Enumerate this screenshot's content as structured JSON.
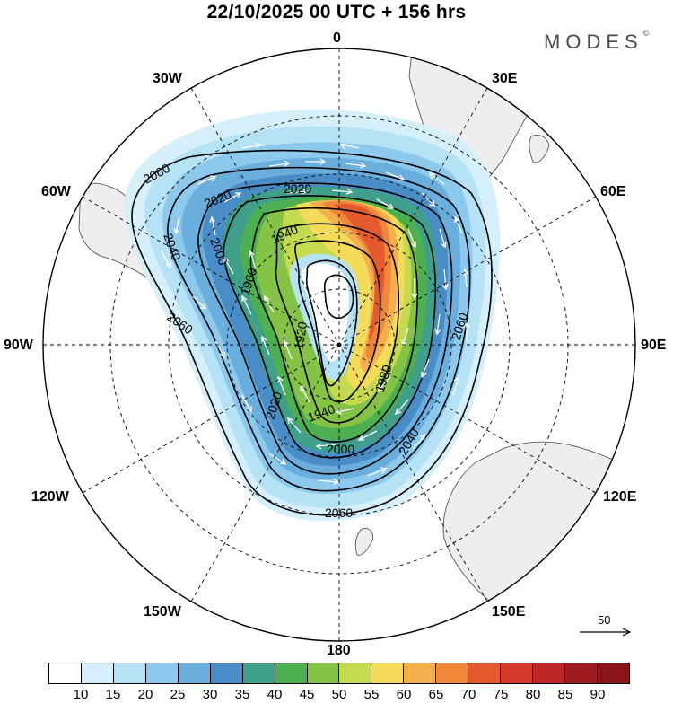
{
  "header": {
    "title": "22/10/2025  00 UTC  + 156 hrs",
    "brand": "MODES",
    "brand_mark": "©"
  },
  "map": {
    "projection": "polar-stereographic-south",
    "longitude_labels": {
      "top": "0",
      "top_right": "30E",
      "right_upper": "60E",
      "right": "90E",
      "right_lower": "120E",
      "bottom_right": "150E",
      "bottom": "180",
      "bottom_left": "150W",
      "left_lower": "120W",
      "left": "90W",
      "left_upper": "60W",
      "top_left": "30W"
    },
    "contour_labels": [
      "2060",
      "2020",
      "2020",
      "2040",
      "2000",
      "1940",
      "1960",
      "1920",
      "1980",
      "2060",
      "1940",
      "2040",
      "2020",
      "2000",
      "2060",
      "2060"
    ],
    "colors": {
      "land": "#eeeeee",
      "coast": "#444444",
      "grid": "#000000",
      "vectors": "#ffffff",
      "contour": "#000000"
    }
  },
  "reference_vector": {
    "label": "50"
  },
  "colorbar": {
    "levels": [
      "10",
      "15",
      "20",
      "25",
      "30",
      "35",
      "40",
      "45",
      "50",
      "55",
      "60",
      "65",
      "70",
      "75",
      "80",
      "85",
      "90"
    ],
    "colors": [
      "#ffffff",
      "#d6f0fb",
      "#b6e2f6",
      "#8dc9ec",
      "#6aaedd",
      "#4a8cc6",
      "#3f9f8a",
      "#4cb050",
      "#84c346",
      "#c6da4f",
      "#f4dc5a",
      "#f3b04c",
      "#f0883a",
      "#e45a2e",
      "#d33a2a",
      "#be2527",
      "#9e1b1f",
      "#8a1518"
    ]
  }
}
